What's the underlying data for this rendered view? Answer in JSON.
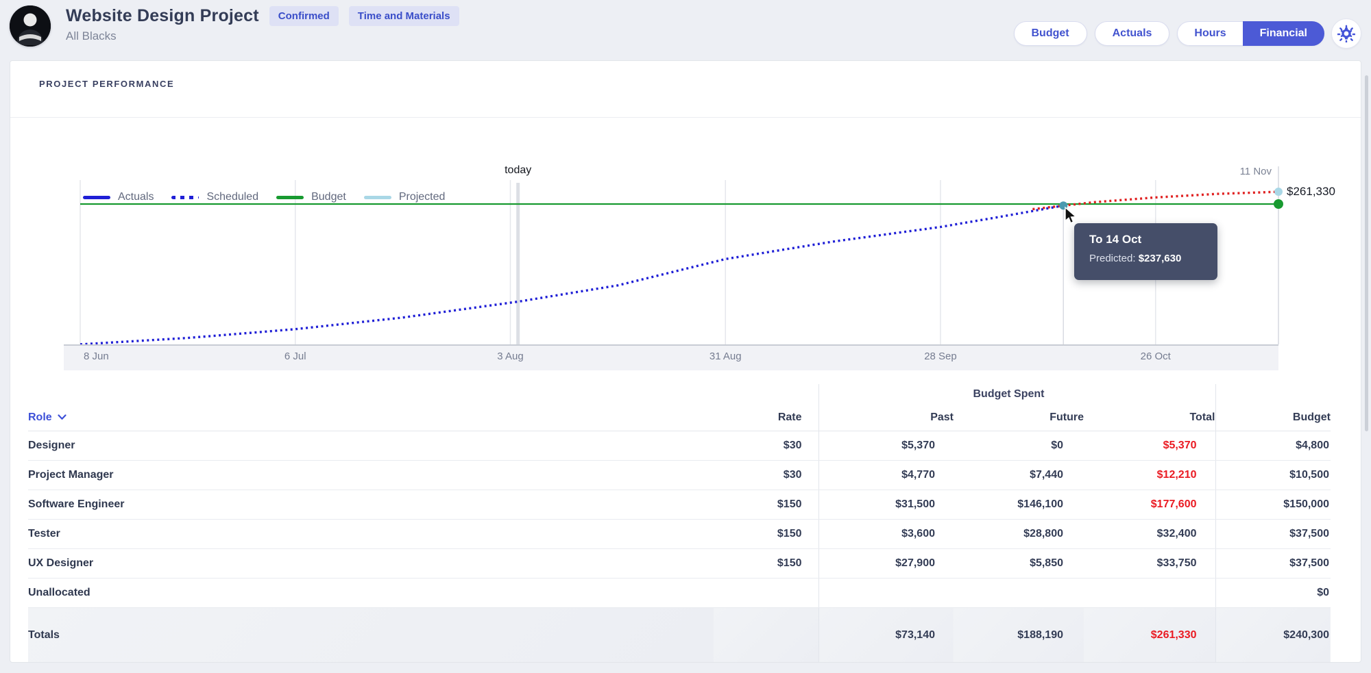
{
  "header": {
    "title": "Website Design Project",
    "subtitle": "All Blacks",
    "badges": [
      "Confirmed",
      "Time and Materials"
    ],
    "actions": {
      "budget": "Budget",
      "actuals": "Actuals",
      "hours": "Hours",
      "financial": "Financial"
    }
  },
  "section": {
    "title": "PROJECT PERFORMANCE"
  },
  "chart_data": {
    "type": "line",
    "title": "Project performance: budget spend over time",
    "x_unit": "days since 8 Jun",
    "value_axis": {
      "min": 0,
      "max": 286000,
      "grid": false
    },
    "ticks": [
      {
        "day": 0,
        "label": "8 Jun"
      },
      {
        "day": 28,
        "label": "6 Jul"
      },
      {
        "day": 56,
        "label": "3 Aug"
      },
      {
        "day": 84,
        "label": "31 Aug"
      },
      {
        "day": 112,
        "label": "28 Sep"
      },
      {
        "day": 140,
        "label": "26 Oct"
      }
    ],
    "end_label": {
      "day": 156,
      "label": "11 Nov"
    },
    "today": {
      "day": 57,
      "label": "today"
    },
    "legend": [
      {
        "label": "Actuals",
        "style": "solid",
        "color": "#1f1fd6"
      },
      {
        "label": "Scheduled",
        "style": "dotted",
        "color": "#1f1fd6"
      },
      {
        "label": "Budget",
        "style": "solid",
        "color": "#189a30"
      },
      {
        "label": "Projected",
        "style": "solid",
        "color": "#a9d7e6"
      }
    ],
    "series": [
      {
        "name": "Actuals",
        "style": "solid",
        "color": "#1f1fd6",
        "points": []
      },
      {
        "name": "Scheduled",
        "style": "dotted",
        "color": "#1f1fd6",
        "points": [
          [
            0,
            0
          ],
          [
            14,
            11000
          ],
          [
            28,
            26000
          ],
          [
            42,
            46000
          ],
          [
            57,
            73140
          ],
          [
            70,
            101000
          ],
          [
            84,
            146000
          ],
          [
            98,
            176000
          ],
          [
            112,
            201000
          ],
          [
            120,
            219000
          ],
          [
            128,
            237630
          ]
        ]
      },
      {
        "name": "Budget",
        "style": "solid",
        "color": "#189a30",
        "points": [
          [
            0,
            240300
          ],
          [
            156,
            240300
          ]
        ]
      },
      {
        "name": "Projected",
        "style": "dotted",
        "color": "#a9d7e6",
        "color_rendered": "#e02020",
        "points": [
          [
            124,
            231500
          ],
          [
            132,
            243500
          ],
          [
            140,
            251500
          ],
          [
            148,
            257600
          ],
          [
            156,
            261330
          ]
        ]
      }
    ],
    "markers": [
      {
        "name": "hovered-point",
        "day": 128,
        "value": 237630,
        "color": "#4a99af",
        "r": 6
      },
      {
        "name": "projected-end-point",
        "day": 156,
        "value": 261330,
        "color": "#a9d7e6",
        "r": 6
      },
      {
        "name": "budget-end-point",
        "day": 156,
        "value": 240300,
        "color": "#189a30",
        "r": 7
      }
    ],
    "end_value_label": "$261,330",
    "tooltip": {
      "title": "To 14 Oct",
      "label": "Predicted: ",
      "value": "$237,630"
    }
  },
  "table": {
    "group_header": "Budget Spent",
    "columns": {
      "role": "Role",
      "rate": "Rate",
      "past": "Past",
      "future": "Future",
      "total": "Total",
      "budget": "Budget"
    },
    "rows": [
      {
        "role": "Designer",
        "rate": "$30",
        "past": "$5,370",
        "future": "$0",
        "total": "$5,370",
        "total_over": true,
        "budget": "$4,800"
      },
      {
        "role": "Project Manager",
        "rate": "$30",
        "past": "$4,770",
        "future": "$7,440",
        "total": "$12,210",
        "total_over": true,
        "budget": "$10,500"
      },
      {
        "role": "Software Engineer",
        "rate": "$150",
        "past": "$31,500",
        "future": "$146,100",
        "total": "$177,600",
        "total_over": true,
        "budget": "$150,000"
      },
      {
        "role": "Tester",
        "rate": "$150",
        "past": "$3,600",
        "future": "$28,800",
        "total": "$32,400",
        "total_over": false,
        "budget": "$37,500"
      },
      {
        "role": "UX Designer",
        "rate": "$150",
        "past": "$27,900",
        "future": "$5,850",
        "total": "$33,750",
        "total_over": false,
        "budget": "$37,500"
      },
      {
        "role": "Unallocated",
        "rate": "",
        "past": "",
        "future": "",
        "total": "",
        "total_over": false,
        "budget": "$0"
      }
    ],
    "totals": {
      "role": "Totals",
      "rate": "",
      "past": "$73,140",
      "future": "$188,190",
      "total": "$261,330",
      "total_over": true,
      "budget": "$240,300"
    }
  },
  "colors": {
    "accent_blue": "#4c5ad6",
    "badge_text": "#3a4ec9",
    "over_budget_red": "#ea1a22",
    "budget_green": "#189a30",
    "scheduled_blue": "#1f1fd6",
    "projected_light": "#a9d7e6",
    "projected_over_red": "#e02020",
    "tooltip_bg": "#454e69"
  }
}
